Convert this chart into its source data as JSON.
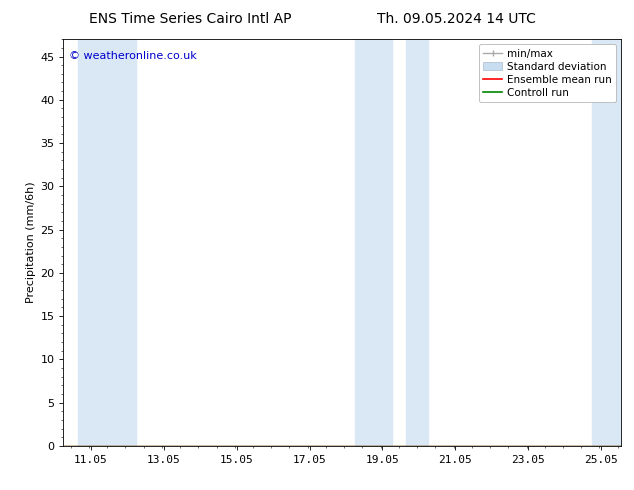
{
  "title_left": "ENS Time Series Cairo Intl AP",
  "title_right": "Th. 09.05.2024 14 UTC",
  "ylabel": "Precipitation (mm/6h)",
  "ylim": [
    0,
    47
  ],
  "yticks": [
    0,
    5,
    10,
    15,
    20,
    25,
    30,
    35,
    40,
    45
  ],
  "background_color": "#ffffff",
  "plot_bg_color": "#ffffff",
  "watermark": "© weatheronline.co.uk",
  "watermark_color": "#0000cc",
  "shaded_bands": [
    {
      "x_start": 10.7,
      "x_end": 12.3,
      "color": "#dae8f5"
    },
    {
      "x_start": 18.3,
      "x_end": 19.3,
      "color": "#dae8f5"
    },
    {
      "x_start": 19.7,
      "x_end": 20.3,
      "color": "#dae8f5"
    },
    {
      "x_start": 24.8,
      "x_end": 25.6,
      "color": "#dae8f5"
    }
  ],
  "xticks": [
    11.05,
    13.05,
    15.05,
    17.05,
    19.05,
    21.05,
    23.05,
    25.05
  ],
  "xtick_labels": [
    "11.05",
    "13.05",
    "15.05",
    "17.05",
    "19.05",
    "21.05",
    "23.05",
    "25.05"
  ],
  "x_min": 10.3,
  "x_max": 25.6,
  "title_fontsize": 10,
  "tick_fontsize": 8,
  "ylabel_fontsize": 8,
  "watermark_fontsize": 8,
  "legend_fontsize": 7.5,
  "minmax_color": "#aaaaaa",
  "std_color": "#c8ddf0",
  "ensemble_color": "#ff0000",
  "control_color": "#008800"
}
